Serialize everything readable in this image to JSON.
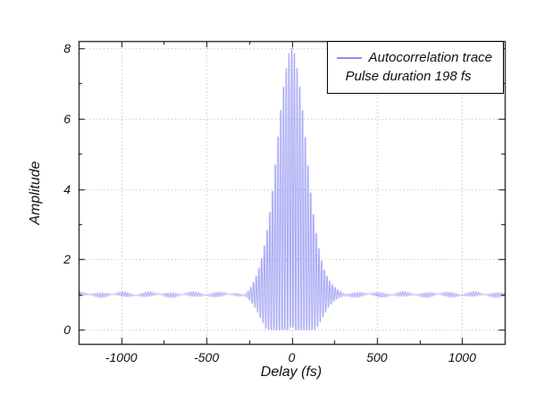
{
  "figure": {
    "background": "#ffffff",
    "trace_color": "#8f8ff2",
    "grid_color": "#aaaaaa",
    "axis_color": "#000000"
  },
  "axes": {
    "x_label": "Delay (fs)",
    "y_label": "Amplitude",
    "x_range": [
      -1250,
      1250
    ],
    "y_range": [
      -0.4,
      8.2
    ],
    "x_ticks": [
      -1000,
      -500,
      0,
      500,
      1000
    ],
    "x_tick_labels": [
      "-1000",
      "-500",
      "0",
      "500",
      "1000"
    ],
    "x_minor_ticks": [
      -1250,
      -750,
      -250,
      250,
      750,
      1250
    ],
    "y_ticks": [
      0,
      2,
      4,
      6,
      8
    ],
    "y_tick_labels": [
      "0",
      "2",
      "4",
      "6",
      "8"
    ],
    "y_minor_ticks": [
      1,
      3,
      5,
      7
    ]
  },
  "legend": {
    "entries": [
      {
        "label": "Autocorrelation trace",
        "has_line_sample": true
      },
      {
        "label": "Pulse duration 198 fs",
        "has_line_sample": false
      }
    ]
  },
  "chart_data": {
    "type": "line",
    "title": "",
    "xlabel": "Delay (fs)",
    "ylabel": "Amplitude",
    "xlim": [
      -1250,
      1250
    ],
    "ylim": [
      -0.4,
      8.2
    ],
    "grid": "dotted-major",
    "legend_position": "top-right",
    "series": [
      {
        "name": "Autocorrelation trace",
        "description": "Interferometric autocorrelation trace: dense optical fringes oscillating between lower and upper envelopes; background level 1, peak 8 at zero delay, small ripple on the wings",
        "peak_amplitude": 8,
        "background_level": 1,
        "pulse_duration_fs": 198
      }
    ],
    "envelope_x_fs": [
      -400,
      -350,
      -300,
      -250,
      -200,
      -150,
      -100,
      -50,
      0,
      50,
      100,
      150,
      200,
      250,
      300,
      350,
      400
    ],
    "envelope_upper": [
      1.0,
      1.01,
      1.05,
      1.18,
      1.6,
      2.62,
      4.53,
      6.87,
      8.0,
      6.87,
      4.53,
      2.62,
      1.6,
      1.18,
      1.05,
      1.01,
      1.0
    ],
    "envelope_lower": [
      1.0,
      0.99,
      0.96,
      0.83,
      0.51,
      0.02,
      0.0,
      0.0,
      0.0,
      0.0,
      0.0,
      0.02,
      0.51,
      0.83,
      0.96,
      0.99,
      1.0
    ],
    "wing_ripple_peak_amplitude": 0.08,
    "generator": {
      "background_level": 1,
      "peak_amplitude": 8,
      "envelope_sigma_fs": 100,
      "fringe_period_fs": 16,
      "sample_step_fs": 1.25,
      "ripple_components": [
        {
          "amp": 0.04,
          "period_fs": 16.6,
          "phase": 0
        },
        {
          "amp": 0.032,
          "period_fs": 14.8,
          "phase": 1.2
        },
        {
          "amp": 0.018,
          "period_fs": 210,
          "phase": 0.6
        }
      ]
    }
  }
}
